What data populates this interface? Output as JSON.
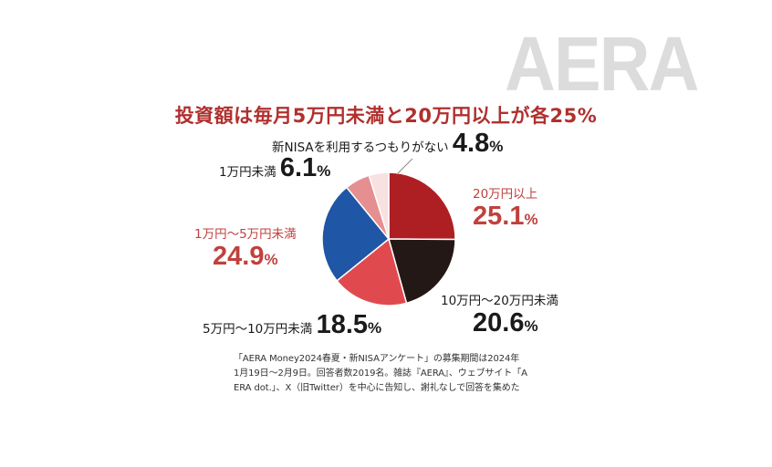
{
  "logo": "AERA",
  "title": "投資額は毎月5万円未満と20万円以上が各25%",
  "chart_data": {
    "type": "pie",
    "title": "投資額は毎月5万円未満と20万円以上が各25%",
    "unit": "%",
    "slices": [
      {
        "label": "20万円以上",
        "value": 25.1,
        "value_text": "25.1",
        "color": "#ae1f24"
      },
      {
        "label": "10万円〜20万円未満",
        "value": 20.6,
        "value_text": "20.6",
        "color": "#231815"
      },
      {
        "label": "5万円〜10万円未満",
        "value": 18.5,
        "value_text": "18.5",
        "color": "#e04a4f"
      },
      {
        "label": "1万円〜5万円未満",
        "value": 24.9,
        "value_text": "24.9",
        "color": "#1f56a5"
      },
      {
        "label": "1万円未満",
        "value": 6.1,
        "value_text": "6.1",
        "color": "#e58f90"
      },
      {
        "label": "新NISAを利用するつもりがない",
        "value": 4.8,
        "value_text": "4.8",
        "color": "#f9e1e2"
      }
    ]
  },
  "note": {
    "lines": [
      "「AERA Money2024春夏・新NISAアンケート」の募集期間は2024年",
      "1月19日〜2月9日。回答者数2019名。雑誌『AERA』、ウェブサイト「A",
      "ERA dot.」、X（旧Twitter）を中心に告知し、謝礼なしで回答を集めた"
    ]
  }
}
